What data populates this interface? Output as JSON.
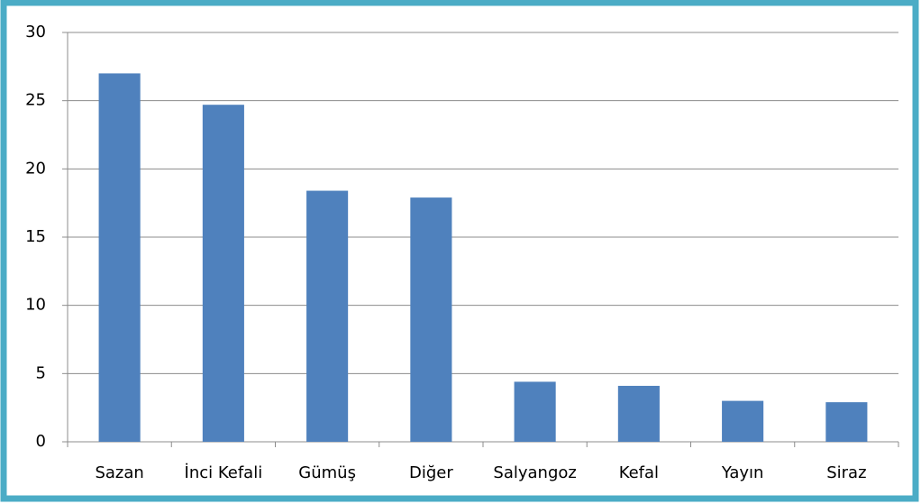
{
  "chart_data": {
    "type": "bar",
    "categories": [
      "Sazan",
      "İnci Kefali",
      "Gümüş",
      "Diğer",
      "Salyangoz",
      "Kefal",
      "Yayın",
      "Siraz"
    ],
    "values": [
      27,
      24.7,
      18.4,
      17.9,
      4.4,
      4.1,
      3.0,
      2.9
    ],
    "color": "#4f81bd",
    "ylim": [
      0,
      30
    ],
    "yticks": [
      0,
      5,
      10,
      15,
      20,
      25,
      30
    ],
    "grid": true
  }
}
